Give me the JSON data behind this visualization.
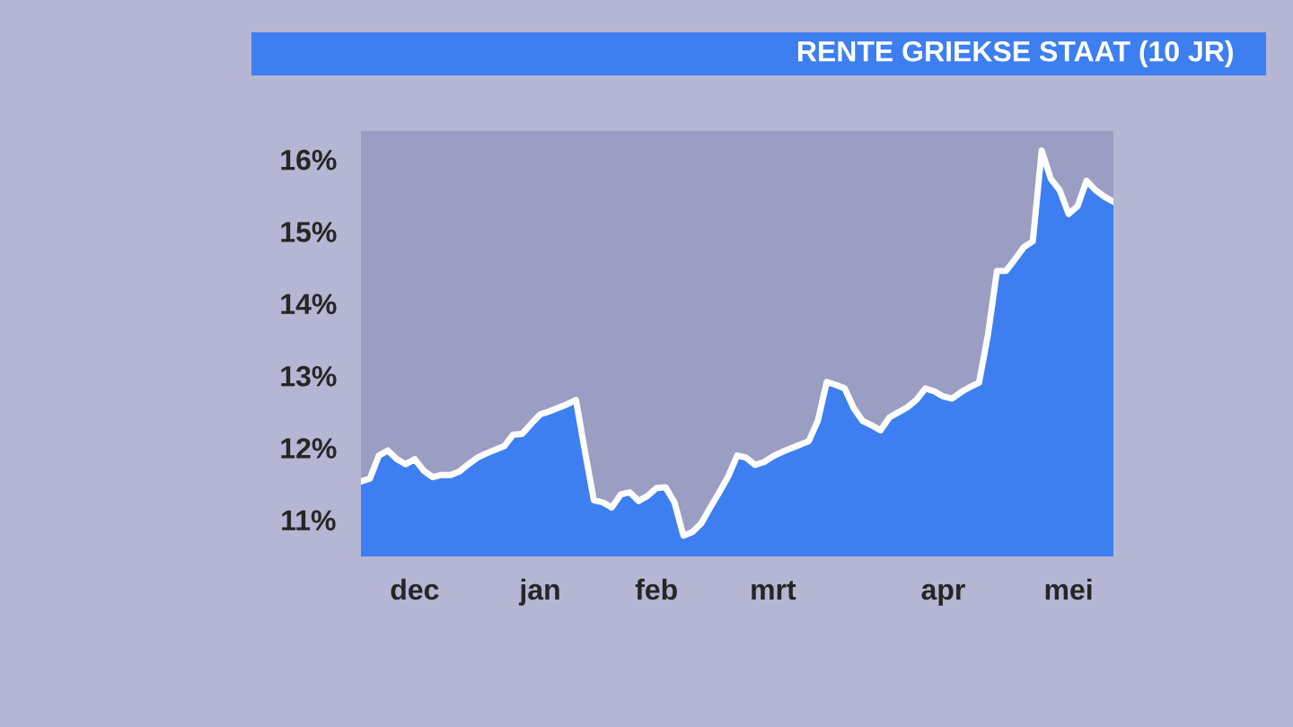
{
  "chart_data": {
    "type": "area",
    "title": "RENTE GRIEKSE STAAT (10 JR)",
    "categories": [
      null,
      null,
      null,
      null,
      null,
      null,
      "dec",
      null,
      null,
      null,
      null,
      null,
      null,
      null,
      null,
      null,
      null,
      null,
      null,
      null,
      "jan",
      null,
      null,
      null,
      null,
      null,
      null,
      null,
      null,
      null,
      null,
      null,
      null,
      "feb",
      null,
      null,
      null,
      null,
      null,
      null,
      null,
      null,
      null,
      null,
      null,
      null,
      "mrt",
      null,
      null,
      null,
      null,
      null,
      null,
      null,
      null,
      null,
      null,
      null,
      null,
      null,
      null,
      null,
      null,
      null,
      null,
      "apr",
      null,
      null,
      null,
      null,
      null,
      null,
      null,
      null,
      null,
      null,
      null,
      null,
      null,
      "mei",
      null,
      null,
      null,
      null,
      null
    ],
    "values": [
      11.54,
      11.58,
      11.9,
      11.97,
      11.85,
      11.78,
      11.85,
      11.69,
      11.6,
      11.63,
      11.63,
      11.68,
      11.78,
      11.87,
      11.93,
      11.98,
      12.03,
      12.19,
      12.2,
      12.34,
      12.47,
      12.51,
      12.56,
      12.61,
      12.67,
      11.96,
      11.28,
      11.25,
      11.18,
      11.36,
      11.39,
      11.27,
      11.34,
      11.45,
      11.46,
      11.25,
      10.79,
      10.84,
      10.96,
      11.18,
      11.39,
      11.61,
      11.9,
      11.87,
      11.77,
      11.81,
      11.89,
      11.95,
      12.0,
      12.05,
      12.1,
      12.38,
      12.92,
      12.88,
      12.83,
      12.56,
      12.38,
      12.32,
      12.25,
      12.43,
      12.5,
      12.57,
      12.67,
      12.83,
      12.79,
      12.72,
      12.69,
      12.78,
      12.85,
      12.91,
      13.58,
      14.46,
      14.46,
      14.62,
      14.79,
      14.87,
      16.13,
      15.74,
      15.58,
      15.25,
      15.36,
      15.71,
      15.58,
      15.49,
      15.42
    ],
    "color": "#3d7ff0",
    "ylim": [
      10.5,
      16.4
    ],
    "yticks": [
      {
        "value": 11,
        "label": "11%"
      },
      {
        "value": 12,
        "label": "12%"
      },
      {
        "value": 13,
        "label": "13%"
      },
      {
        "value": 14,
        "label": "14%"
      },
      {
        "value": 15,
        "label": "15%"
      },
      {
        "value": 16,
        "label": "16%"
      }
    ]
  }
}
